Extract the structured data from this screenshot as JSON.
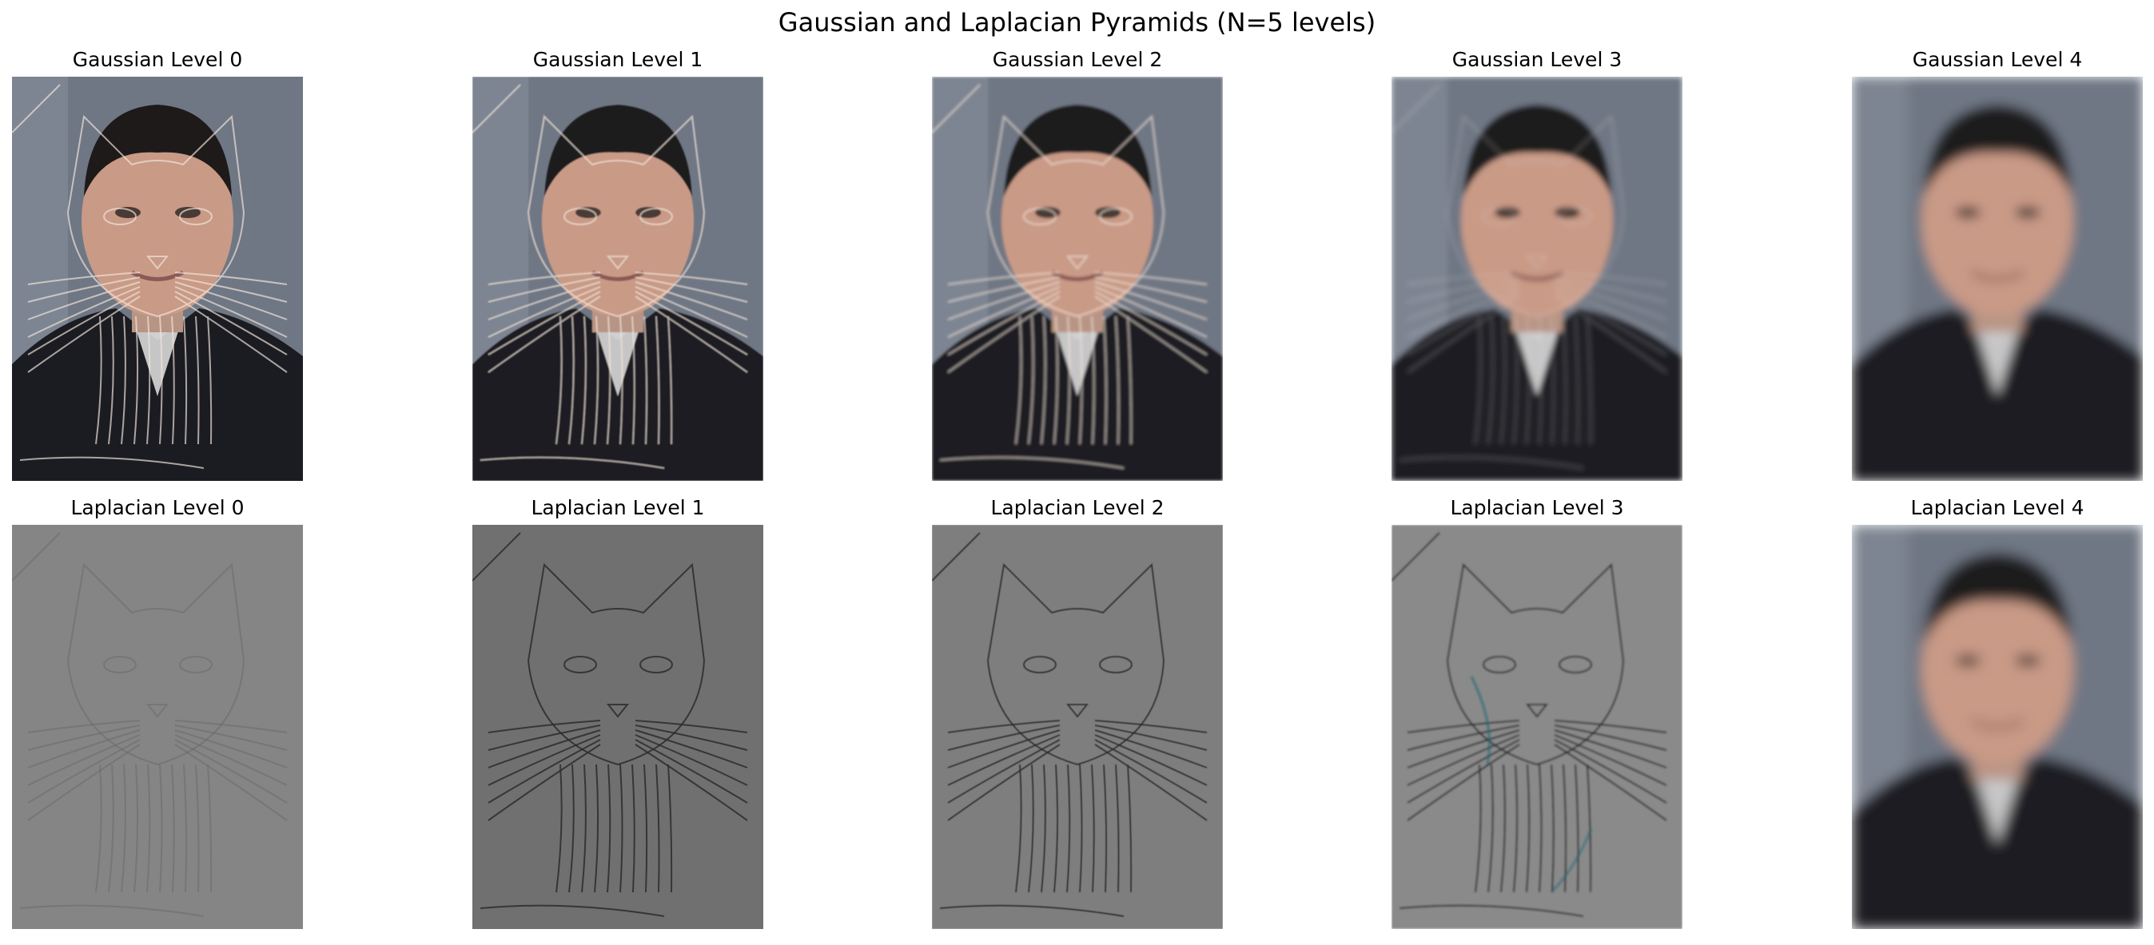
{
  "figure": {
    "title": "Gaussian and Laplacian Pyramids (N=5 levels)"
  },
  "rows": [
    {
      "kind": "gaussian",
      "panels": [
        {
          "title": "Gaussian Level 0",
          "content": "hybrid-cat-man",
          "blur": 0.0
        },
        {
          "title": "Gaussian Level 1",
          "content": "hybrid-cat-man",
          "blur": 0.8
        },
        {
          "title": "Gaussian Level 2",
          "content": "hybrid-cat-man",
          "blur": 1.6
        },
        {
          "title": "Gaussian Level 3",
          "content": "hybrid-cat-man-faded",
          "blur": 3.5
        },
        {
          "title": "Gaussian Level 4",
          "content": "man-pixelated",
          "blur": 7
        }
      ]
    },
    {
      "kind": "laplacian",
      "panels": [
        {
          "title": "Laplacian Level 0",
          "content": "cat-edges-faint",
          "blur": 0
        },
        {
          "title": "Laplacian Level 1",
          "content": "cat-edges",
          "blur": 0
        },
        {
          "title": "Laplacian Level 2",
          "content": "cat-edges-strong",
          "blur": 0.5
        },
        {
          "title": "Laplacian Level 3",
          "content": "cat-edges-color",
          "blur": 1.2
        },
        {
          "title": "Laplacian Level 4",
          "content": "man-blurred",
          "blur": 8
        }
      ]
    }
  ],
  "colors": {
    "gaussian_bg": "#6f7784",
    "skin": "#c99a86",
    "shirt": "#1b1c22",
    "laplacian_bg": "#7e7e7e",
    "edge": "#2c2c2c"
  }
}
